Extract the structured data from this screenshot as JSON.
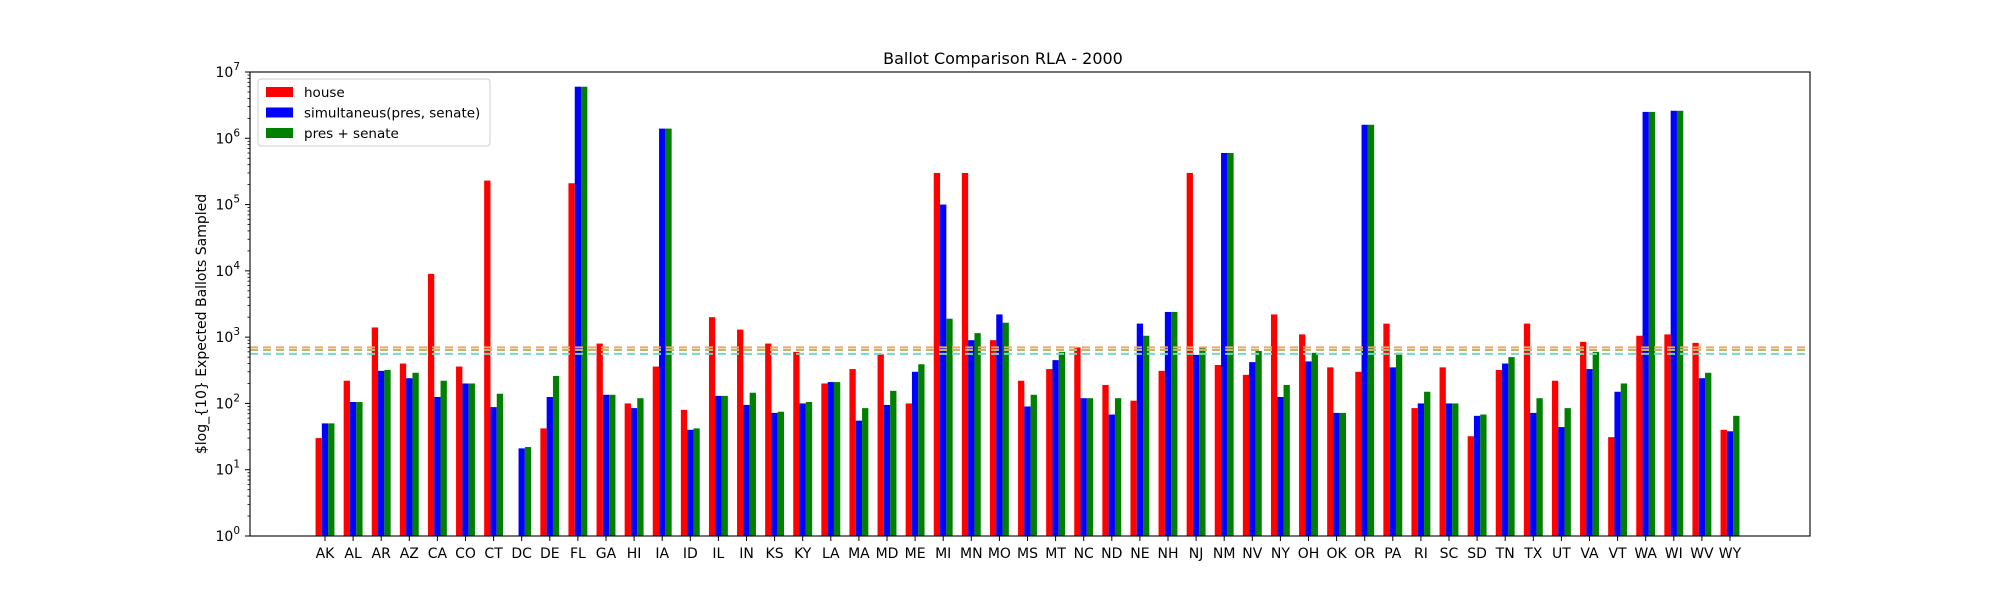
{
  "chart_data": {
    "type": "bar",
    "title": "Ballot Comparison RLA - 2000",
    "xlabel": "",
    "ylabel": "$log_{10} Expected Ballots Sampled",
    "yscale": "log",
    "ylim": [
      1,
      10000000
    ],
    "yticks": [
      {
        "value": 1,
        "base": "10",
        "exp": "0"
      },
      {
        "value": 10,
        "base": "10",
        "exp": "1"
      },
      {
        "value": 100,
        "base": "10",
        "exp": "2"
      },
      {
        "value": 1000,
        "base": "10",
        "exp": "3"
      },
      {
        "value": 10000,
        "base": "10",
        "exp": "4"
      },
      {
        "value": 100000,
        "base": "10",
        "exp": "5"
      },
      {
        "value": 1000000,
        "base": "10",
        "exp": "6"
      },
      {
        "value": 10000000,
        "base": "10",
        "exp": "7"
      }
    ],
    "grid": false,
    "legend_position": "top-left",
    "categories": [
      "AK",
      "AL",
      "AR",
      "AZ",
      "CA",
      "CO",
      "CT",
      "DC",
      "DE",
      "FL",
      "GA",
      "HI",
      "IA",
      "ID",
      "IL",
      "IN",
      "KS",
      "KY",
      "LA",
      "MA",
      "MD",
      "ME",
      "MI",
      "MN",
      "MO",
      "MS",
      "MT",
      "NC",
      "ND",
      "NE",
      "NH",
      "NJ",
      "NM",
      "NV",
      "NY",
      "OH",
      "OK",
      "OR",
      "PA",
      "RI",
      "SC",
      "SD",
      "TN",
      "TX",
      "UT",
      "VA",
      "VT",
      "WA",
      "WI",
      "WV",
      "WY"
    ],
    "series": [
      {
        "name": "house",
        "color": "#ff0000",
        "values": [
          30,
          220,
          1400,
          400,
          9000,
          360,
          230000,
          null,
          42,
          210000,
          800,
          100,
          360,
          80,
          2000,
          1300,
          800,
          600,
          200,
          330,
          550,
          100,
          300000,
          300000,
          900,
          220,
          330,
          700,
          190,
          110,
          310,
          300000,
          380,
          270,
          2200,
          1100,
          350,
          300,
          1600,
          85,
          350,
          32,
          320,
          1600,
          220,
          850,
          31,
          1050,
          1100,
          820,
          40
        ]
      },
      {
        "name": "simultaneus(pres, senate)",
        "color": "#0000ff",
        "values": [
          50,
          105,
          310,
          240,
          125,
          200,
          88,
          21,
          125,
          6000000,
          135,
          85,
          1400000,
          40,
          130,
          95,
          72,
          100,
          210,
          55,
          95,
          300,
          100000,
          900,
          2200,
          90,
          450,
          120,
          68,
          1600,
          2400,
          540,
          600000,
          420,
          125,
          430,
          72,
          1600000,
          350,
          100,
          100,
          65,
          400,
          72,
          44,
          330,
          150,
          2500000,
          2600000,
          240,
          38
        ]
      },
      {
        "name": "pres + senate",
        "color": "#008000",
        "values": [
          50,
          105,
          320,
          290,
          220,
          200,
          140,
          22,
          260,
          6000000,
          135,
          120,
          1400000,
          42,
          130,
          145,
          75,
          105,
          210,
          85,
          155,
          390,
          1900,
          1150,
          1650,
          135,
          600,
          120,
          120,
          1050,
          2400,
          720,
          600000,
          620,
          190,
          580,
          72,
          1600000,
          580,
          150,
          100,
          68,
          500,
          120,
          85,
          600,
          200,
          2500000,
          2600000,
          290,
          65
        ]
      }
    ],
    "reference_lines": [
      {
        "value": 700,
        "color": "#f4a460"
      },
      {
        "value": 640,
        "color": "#bdb76b"
      },
      {
        "value": 560,
        "color": "#76d7c4"
      }
    ]
  }
}
